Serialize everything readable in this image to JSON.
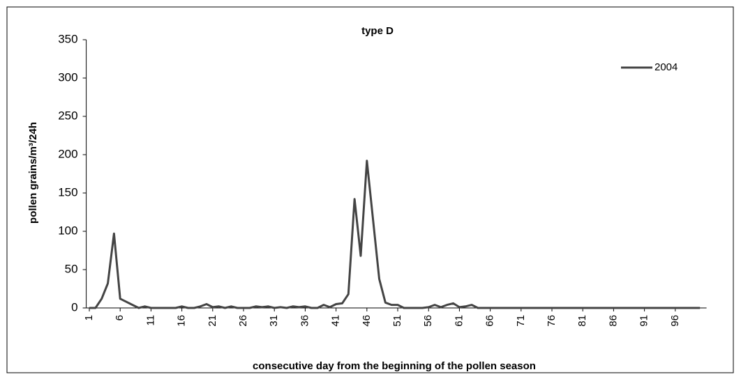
{
  "chart_data": {
    "type": "line",
    "title": "type D",
    "x_label": "consecutive day from the beginning of the pollen season",
    "y_label": "pollen grains/m³/24h",
    "x": [
      1,
      2,
      3,
      4,
      5,
      6,
      7,
      8,
      9,
      10,
      11,
      12,
      13,
      14,
      15,
      16,
      17,
      18,
      19,
      20,
      21,
      22,
      23,
      24,
      25,
      26,
      27,
      28,
      29,
      30,
      31,
      32,
      33,
      34,
      35,
      36,
      37,
      38,
      39,
      40,
      41,
      42,
      43,
      44,
      45,
      46,
      47,
      48,
      49,
      50,
      51,
      52,
      53,
      54,
      55,
      56,
      57,
      58,
      59,
      60,
      61,
      62,
      63,
      64,
      65,
      66,
      67,
      68,
      69,
      70,
      71,
      72,
      73,
      74,
      75,
      76,
      77,
      78,
      79,
      80,
      81,
      82,
      83,
      84,
      85,
      86,
      87,
      88,
      89,
      90,
      91,
      92,
      93,
      94,
      95,
      96,
      97,
      98,
      99,
      100
    ],
    "series": [
      {
        "name": "2004",
        "color": "#444444",
        "values": [
          0,
          0,
          12,
          32,
          97,
          12,
          8,
          4,
          0,
          2,
          0,
          0,
          0,
          0,
          0,
          2,
          0,
          0,
          2,
          5,
          1,
          2,
          0,
          2,
          0,
          0,
          0,
          2,
          1,
          2,
          0,
          1,
          0,
          2,
          1,
          2,
          0,
          0,
          4,
          1,
          5,
          6,
          18,
          142,
          68,
          192,
          115,
          38,
          7,
          4,
          4,
          0,
          0,
          0,
          0,
          1,
          4,
          1,
          4,
          6,
          1,
          2,
          4,
          0,
          0,
          0,
          0,
          0,
          0,
          0,
          0,
          0,
          0,
          0,
          0,
          0,
          0,
          0,
          0,
          0,
          0,
          0,
          0,
          0,
          0,
          0,
          0,
          0,
          0,
          0,
          0,
          0,
          0,
          0,
          0,
          0,
          0,
          0,
          0,
          0
        ]
      }
    ],
    "xlim": [
      0.5,
      100.5
    ],
    "xticks": [
      1,
      6,
      11,
      16,
      21,
      26,
      31,
      36,
      41,
      46,
      51,
      56,
      61,
      66,
      71,
      76,
      81,
      86,
      91,
      96
    ],
    "ylim": [
      0,
      350
    ],
    "yticks": [
      0,
      50,
      100,
      150,
      200,
      250,
      300,
      350
    ],
    "legend": "upper-right"
  }
}
